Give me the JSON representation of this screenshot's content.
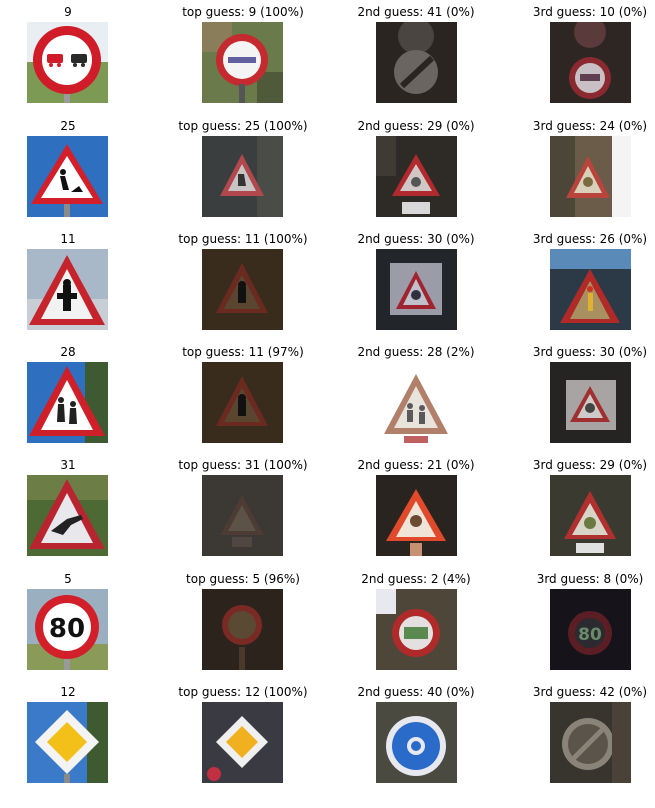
{
  "rows": [
    {
      "input": "9",
      "guesses": [
        "top guess: 9 (100%)",
        "2nd guess: 41 (0%)",
        "3rd guess: 10 (0%)"
      ]
    },
    {
      "input": "25",
      "guesses": [
        "top guess: 25 (100%)",
        "2nd guess: 29 (0%)",
        "3rd guess: 24 (0%)"
      ]
    },
    {
      "input": "11",
      "guesses": [
        "top guess: 11 (100%)",
        "2nd guess: 30 (0%)",
        "3rd guess: 26 (0%)"
      ]
    },
    {
      "input": "28",
      "guesses": [
        "top guess: 11 (97%)",
        "2nd guess: 28 (2%)",
        "3rd guess: 30 (0%)"
      ]
    },
    {
      "input": "31",
      "guesses": [
        "top guess: 31 (100%)",
        "2nd guess: 21 (0%)",
        "3rd guess: 29 (0%)"
      ]
    },
    {
      "input": "5",
      "guesses": [
        "top guess: 5 (96%)",
        "2nd guess: 2 (4%)",
        "3rd guess: 8 (0%)"
      ]
    },
    {
      "input": "12",
      "guesses": [
        "top guess: 12 (100%)",
        "2nd guess: 40 (0%)",
        "3rd guess: 42 (0%)"
      ]
    }
  ],
  "sign_text": {
    "speed_input": "80",
    "speed_dark": "80"
  }
}
